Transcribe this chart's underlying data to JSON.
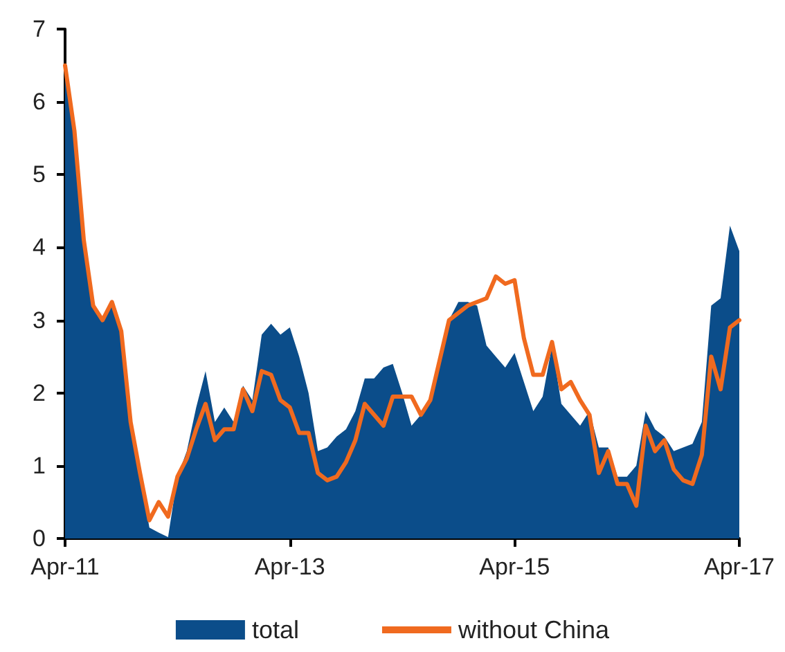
{
  "chart_data": {
    "type": "line",
    "categories": [
      "Apr-11",
      null,
      null,
      null,
      null,
      null,
      null,
      null,
      null,
      null,
      null,
      null,
      null,
      null,
      null,
      null,
      null,
      null,
      null,
      null,
      null,
      null,
      null,
      null,
      "Apr-13",
      null,
      null,
      null,
      null,
      null,
      null,
      null,
      null,
      null,
      null,
      null,
      null,
      null,
      null,
      null,
      null,
      null,
      null,
      null,
      null,
      null,
      null,
      null,
      "Apr-15",
      null,
      null,
      null,
      null,
      null,
      null,
      null,
      null,
      null,
      null,
      null,
      null,
      null,
      null,
      null,
      null,
      null,
      null,
      null,
      null,
      null,
      null,
      null,
      "Apr-17"
    ],
    "series": [
      {
        "name": "total",
        "type": "area",
        "color": "#0b4d8a",
        "values": [
          6.4,
          5.5,
          4.0,
          3.2,
          3.0,
          3.25,
          2.85,
          1.6,
          0.9,
          0.15,
          0.08,
          0.02,
          0.85,
          1.2,
          1.8,
          2.3,
          1.6,
          1.8,
          1.6,
          2.1,
          1.9,
          2.8,
          2.95,
          2.8,
          2.9,
          2.5,
          2.0,
          1.2,
          1.25,
          1.4,
          1.5,
          1.75,
          2.2,
          2.2,
          2.35,
          2.4,
          2.0,
          1.55,
          1.7,
          1.9,
          2.45,
          3.0,
          3.25,
          3.25,
          3.2,
          2.65,
          2.5,
          2.35,
          2.55,
          2.15,
          1.75,
          1.95,
          2.65,
          1.85,
          1.7,
          1.55,
          1.75,
          1.25,
          1.25,
          0.85,
          0.85,
          1.0,
          1.75,
          1.5,
          1.4,
          1.2,
          1.25,
          1.3,
          1.6,
          3.2,
          3.3,
          4.3,
          3.95
        ]
      },
      {
        "name": "without China",
        "color": "#f06a1f",
        "values": [
          6.5,
          5.6,
          4.1,
          3.2,
          3.0,
          3.25,
          2.85,
          1.6,
          0.9,
          0.25,
          0.5,
          0.3,
          0.85,
          1.1,
          1.5,
          1.85,
          1.35,
          1.5,
          1.5,
          2.05,
          1.75,
          2.3,
          2.25,
          1.9,
          1.8,
          1.45,
          1.45,
          0.9,
          0.8,
          0.85,
          1.05,
          1.35,
          1.85,
          1.7,
          1.55,
          1.95,
          1.95,
          1.95,
          1.7,
          1.9,
          2.45,
          3.0,
          3.1,
          3.2,
          3.25,
          3.3,
          3.6,
          3.5,
          3.55,
          2.75,
          2.25,
          2.25,
          2.7,
          2.05,
          2.15,
          1.9,
          1.7,
          0.9,
          1.2,
          0.75,
          0.75,
          0.45,
          1.55,
          1.2,
          1.35,
          0.95,
          0.8,
          0.75,
          1.15,
          2.5,
          2.05,
          2.9,
          3.0
        ]
      }
    ],
    "ylim": [
      0,
      7
    ],
    "yticks": [
      0,
      1,
      2,
      3,
      4,
      5,
      6,
      7
    ],
    "grid": false,
    "legend": "bottom",
    "marker": "none",
    "line_style": "solid"
  }
}
